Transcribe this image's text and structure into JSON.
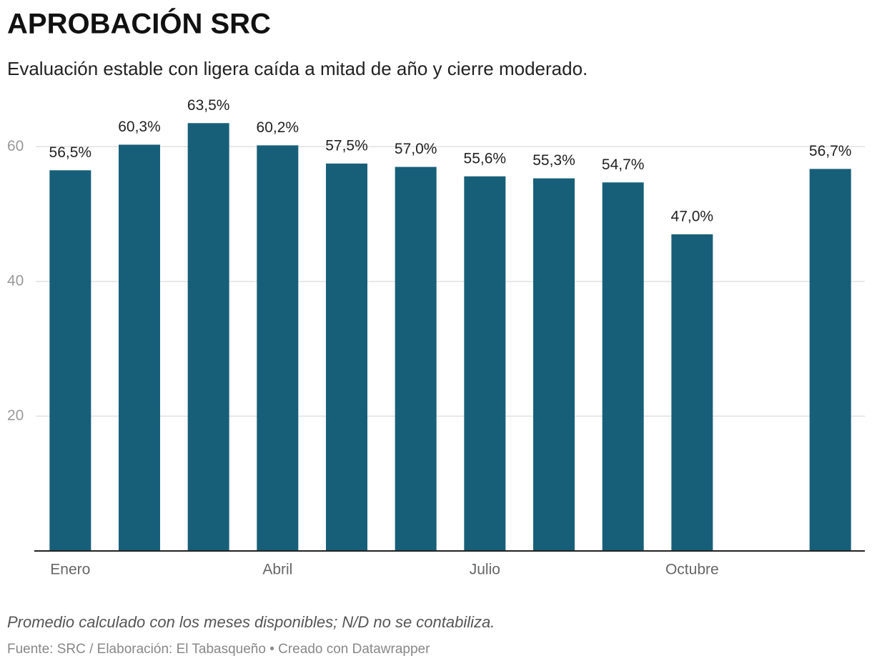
{
  "chart_data": {
    "type": "bar",
    "title": "APROBACIÓN SRC",
    "subtitle": "Evaluación estable con ligera caída a mitad de año y cierre moderado.",
    "notes": "Promedio calculado con los meses disponibles; N/D no se contabiliza.",
    "source": "Fuente: SRC / Elaboración: El Tabasqueño • Creado con Datawrapper",
    "categories": [
      "Enero",
      null,
      null,
      "Abril",
      null,
      null,
      "Julio",
      null,
      null,
      "Octubre",
      null,
      null
    ],
    "values": [
      56.5,
      60.3,
      63.5,
      60.2,
      57.5,
      57.0,
      55.6,
      55.3,
      54.7,
      47.0,
      null,
      56.7
    ],
    "value_labels": [
      "56,5%",
      "60,3%",
      "63,5%",
      "60,2%",
      "57,5%",
      "57,0%",
      "55,6%",
      "55,3%",
      "54,7%",
      "47,0%",
      null,
      "56,7%"
    ],
    "color": "#175f79",
    "ylim": [
      0,
      70
    ],
    "yticks": [
      20,
      40,
      60
    ],
    "grid": true
  }
}
